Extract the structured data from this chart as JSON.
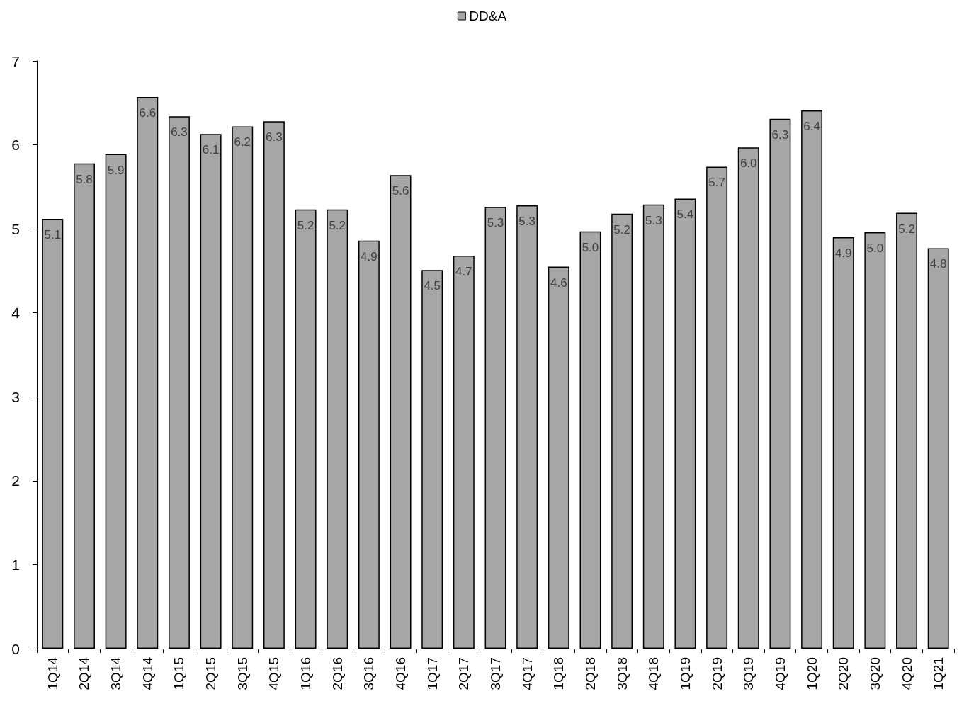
{
  "chart_data": {
    "type": "bar",
    "categories": [
      "1Q14",
      "2Q14",
      "3Q14",
      "4Q14",
      "1Q15",
      "2Q15",
      "3Q15",
      "4Q15",
      "1Q16",
      "2Q16",
      "3Q16",
      "4Q16",
      "1Q17",
      "2Q17",
      "3Q17",
      "4Q17",
      "1Q18",
      "2Q18",
      "3Q18",
      "4Q18",
      "1Q19",
      "2Q19",
      "3Q19",
      "4Q19",
      "1Q20",
      "2Q20",
      "3Q20",
      "4Q20",
      "1Q21"
    ],
    "series": [
      {
        "name": "DD&A",
        "color": "#a6a6a6",
        "values": [
          5.12,
          5.78,
          5.89,
          6.57,
          6.34,
          6.13,
          6.22,
          6.28,
          5.23,
          5.23,
          4.86,
          5.64,
          4.51,
          4.68,
          5.26,
          5.28,
          4.55,
          4.97,
          5.18,
          5.29,
          5.36,
          5.74,
          5.97,
          6.31,
          6.41,
          4.9,
          4.96,
          5.19,
          4.77
        ],
        "value_labels": [
          "5.1",
          "5.8",
          "5.9",
          "6.6",
          "6.3",
          "6.1",
          "6.2",
          "6.3",
          "5.2",
          "5.2",
          "4.9",
          "5.6",
          "4.5",
          "4.7",
          "5.3",
          "5.3",
          "4.6",
          "5.0",
          "5.2",
          "5.3",
          "5.4",
          "5.7",
          "6.0",
          "6.3",
          "6.4",
          "4.9",
          "5.0",
          "5.2",
          "4.8"
        ]
      }
    ],
    "ylim": [
      0,
      7
    ],
    "yticks": [
      0,
      1,
      2,
      3,
      4,
      5,
      6,
      7
    ],
    "grid": false,
    "legend": "top"
  }
}
